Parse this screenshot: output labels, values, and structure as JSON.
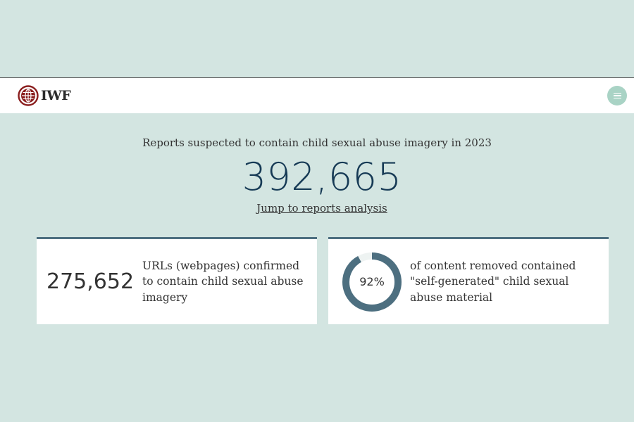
{
  "header": {
    "logo_text": "IWF",
    "menu_icon": "hamburger-menu-icon",
    "menu_color": "#a9d3c5"
  },
  "hero": {
    "headline": "Reports suspected to contain child sexual abuse imagery in 2023",
    "total_reports": "392,665",
    "jump_link": "Jump to reports analysis"
  },
  "stats": {
    "urls": {
      "value": "275,652",
      "text": "URLs (webpages) confirmed to contain child sexual abuse imagery"
    },
    "self_generated": {
      "percent_label": "92%",
      "percent_value": 92,
      "text": "of content removed contained \"self-generated\" child sexual abuse material"
    }
  },
  "colors": {
    "background": "#d3e5e1",
    "accent": "#4d6f80",
    "headline_number": "#163a55"
  }
}
